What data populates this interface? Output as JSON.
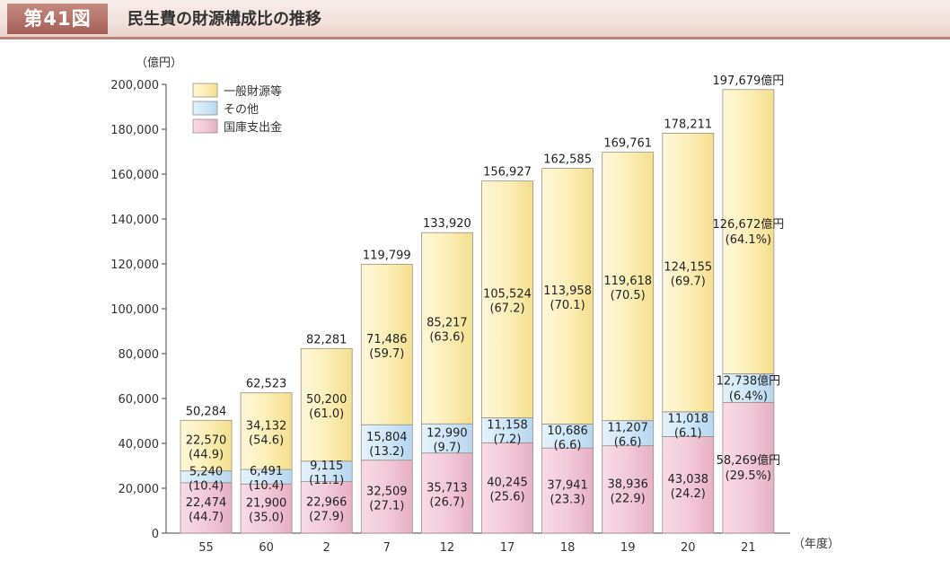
{
  "figure": {
    "number": "第41図",
    "title": "民生費の財源構成比の推移"
  },
  "chart_data": {
    "type": "bar",
    "stacked": true,
    "ylabel": "（億円）",
    "xlabel": "（年度）",
    "ylim": [
      0,
      200000
    ],
    "yticks": [
      "0",
      "20,000",
      "40,000",
      "60,000",
      "80,000",
      "100,000",
      "120,000",
      "140,000",
      "160,000",
      "180,000",
      "200,000"
    ],
    "ytick_values": [
      0,
      20000,
      40000,
      60000,
      80000,
      100000,
      120000,
      140000,
      160000,
      180000,
      200000
    ],
    "categories": [
      "55",
      "60",
      "2",
      "7",
      "12",
      "17",
      "18",
      "19",
      "20",
      "21"
    ],
    "totals": [
      50284,
      62523,
      82281,
      119799,
      133920,
      156927,
      162585,
      169761,
      178211,
      197679
    ],
    "total_labels": [
      "50,284",
      "62,523",
      "82,281",
      "119,799",
      "133,920",
      "156,927",
      "162,585",
      "169,761",
      "178,211",
      "197,679億円"
    ],
    "legend_position": "top-left",
    "legend": [
      "一般財源等",
      "その他",
      "国庫支出金"
    ],
    "series": [
      {
        "name": "国庫支出金",
        "color": "#f2c9d8",
        "values": [
          22474,
          21900,
          22966,
          32509,
          35713,
          40245,
          37941,
          38936,
          43038,
          58269
        ],
        "value_labels": [
          "22,474",
          "21,900",
          "22,966",
          "32,509",
          "35,713",
          "40,245",
          "37,941",
          "38,936",
          "43,038",
          "58,269億円"
        ],
        "pct_labels": [
          "(44.7)",
          "(35.0)",
          "(27.9)",
          "(27.1)",
          "(26.7)",
          "(25.6)",
          "(23.3)",
          "(22.9)",
          "(24.2)",
          "(29.5%)"
        ]
      },
      {
        "name": "その他",
        "color": "#cfe6f7",
        "values": [
          5240,
          6491,
          9115,
          15804,
          12990,
          11158,
          10686,
          11207,
          11018,
          12738
        ],
        "value_labels": [
          "5,240",
          "6,491",
          "9,115",
          "15,804",
          "12,990",
          "11,158",
          "10,686",
          "11,207",
          "11,018",
          "12,738億円"
        ],
        "pct_labels": [
          "(10.4)",
          "(10.4)",
          "(11.1)",
          "(13.2)",
          "(9.7)",
          "(7.2)",
          "(6.6)",
          "(6.6)",
          "(6.1)",
          "(6.4%)"
        ]
      },
      {
        "name": "一般財源等",
        "color": "#fbefb8",
        "values": [
          22570,
          34132,
          50200,
          71486,
          85217,
          105524,
          113958,
          119618,
          124155,
          126672
        ],
        "value_labels": [
          "22,570",
          "34,132",
          "50,200",
          "71,486",
          "85,217",
          "105,524",
          "113,958",
          "119,618",
          "124,155",
          "126,672億円"
        ],
        "pct_labels": [
          "(44.9)",
          "(54.6)",
          "(61.0)",
          "(59.7)",
          "(63.6)",
          "(67.2)",
          "(70.1)",
          "(70.5)",
          "(69.7)",
          "(64.1%)"
        ]
      }
    ]
  }
}
